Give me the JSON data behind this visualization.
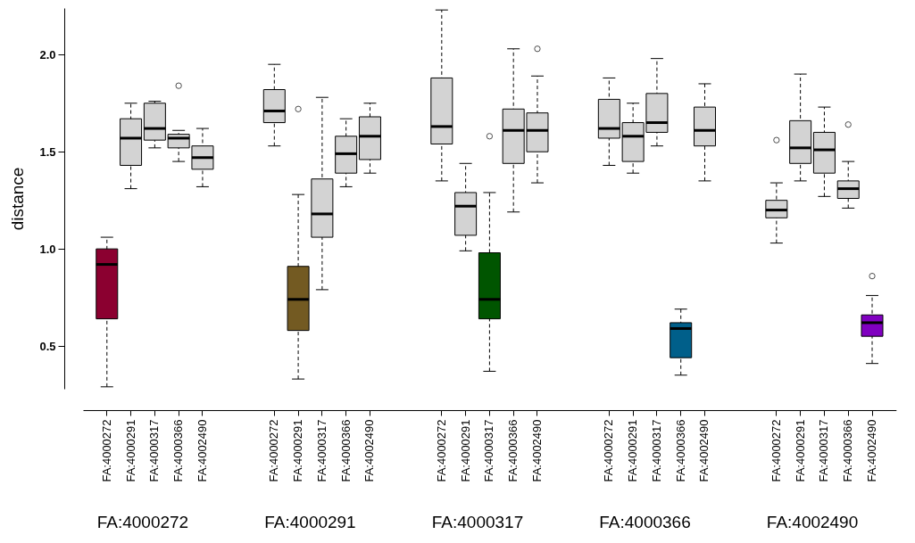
{
  "chart_data": {
    "type": "box",
    "ylabel": "distance",
    "categories": [
      "FA:4000272",
      "FA:4000291",
      "FA:4000317",
      "FA:4000366",
      "FA:4002490",
      null,
      null,
      "FA:4000272",
      "FA:4000291",
      "FA:4000317",
      "FA:4000366",
      "FA:4002490",
      null,
      null,
      "FA:4000272",
      "FA:4000291",
      "FA:4000317",
      "FA:4000366",
      "FA:4002490",
      null,
      null,
      "FA:4000272",
      "FA:4000291",
      "FA:4000317",
      "FA:4000366",
      "FA:4002490",
      null,
      null,
      "FA:4000272",
      "FA:4000291",
      "FA:4000317",
      "FA:4000366",
      "FA:4002490"
    ],
    "annotations": [
      "FA:4000272",
      "FA:4000291",
      "FA:4000317",
      "FA:4000366",
      "FA:4002490"
    ],
    "colors": [
      "#8b0030",
      "#d3d3d3",
      "#d3d3d3",
      "#d3d3d3",
      "#d3d3d3",
      null,
      null,
      "#d3d3d3",
      "#735a22",
      "#d3d3d3",
      "#d3d3d3",
      "#d3d3d3",
      null,
      null,
      "#d3d3d3",
      "#d3d3d3",
      "#005500",
      "#d3d3d3",
      "#d3d3d3",
      null,
      null,
      "#d3d3d3",
      "#d3d3d3",
      "#d3d3d3",
      "#005f8a",
      "#d3d3d3",
      null,
      null,
      "#d3d3d3",
      "#d3d3d3",
      "#d3d3d3",
      "#d3d3d3",
      "#8000c0"
    ],
    "ylim": [
      0.28,
      2.24
    ],
    "yticks": [
      {
        "value": 0.5,
        "label": "0.5"
      },
      {
        "value": 1,
        "label": "1.0"
      },
      {
        "value": 1.5,
        "label": "1.5"
      },
      {
        "value": 2,
        "label": "2.0"
      }
    ],
    "boxes": [
      {
        "low": 0.29,
        "q1": 0.64,
        "median": 0.92,
        "q3": 1.0,
        "high": 1.06
      },
      {
        "low": 1.31,
        "q1": 1.43,
        "median": 1.57,
        "q3": 1.67,
        "high": 1.75
      },
      {
        "low": 1.52,
        "q1": 1.56,
        "median": 1.62,
        "q3": 1.75,
        "high": 1.76
      },
      {
        "low": 1.45,
        "q1": 1.52,
        "median": 1.57,
        "q3": 1.59,
        "high": 1.61,
        "outliers": [
          1.84
        ]
      },
      {
        "low": 1.32,
        "q1": 1.41,
        "median": 1.47,
        "q3": 1.53,
        "high": 1.62
      },
      null,
      null,
      {
        "low": 1.53,
        "q1": 1.65,
        "median": 1.71,
        "q3": 1.82,
        "high": 1.95
      },
      {
        "low": 0.33,
        "q1": 0.58,
        "median": 0.74,
        "q3": 0.91,
        "high": 1.28,
        "outliers": [
          1.72
        ]
      },
      {
        "low": 0.79,
        "q1": 1.06,
        "median": 1.18,
        "q3": 1.36,
        "high": 1.78
      },
      {
        "low": 1.32,
        "q1": 1.39,
        "median": 1.49,
        "q3": 1.58,
        "high": 1.67
      },
      {
        "low": 1.39,
        "q1": 1.46,
        "median": 1.58,
        "q3": 1.68,
        "high": 1.75
      },
      null,
      null,
      {
        "low": 1.35,
        "q1": 1.54,
        "median": 1.63,
        "q3": 1.88,
        "high": 2.23
      },
      {
        "low": 0.99,
        "q1": 1.07,
        "median": 1.22,
        "q3": 1.29,
        "high": 1.44
      },
      {
        "low": 0.37,
        "q1": 0.64,
        "median": 0.74,
        "q3": 0.98,
        "high": 1.29,
        "outliers": [
          1.58
        ]
      },
      {
        "low": 1.19,
        "q1": 1.44,
        "median": 1.61,
        "q3": 1.72,
        "high": 2.03
      },
      {
        "low": 1.34,
        "q1": 1.5,
        "median": 1.61,
        "q3": 1.7,
        "high": 1.89,
        "outliers": [
          2.03
        ]
      },
      null,
      null,
      {
        "low": 1.43,
        "q1": 1.57,
        "median": 1.62,
        "q3": 1.77,
        "high": 1.88
      },
      {
        "low": 1.39,
        "q1": 1.45,
        "median": 1.58,
        "q3": 1.65,
        "high": 1.75
      },
      {
        "low": 1.53,
        "q1": 1.6,
        "median": 1.65,
        "q3": 1.8,
        "high": 1.98
      },
      {
        "low": 0.35,
        "q1": 0.44,
        "median": 0.59,
        "q3": 0.62,
        "high": 0.69
      },
      {
        "low": 1.35,
        "q1": 1.53,
        "median": 1.61,
        "q3": 1.73,
        "high": 1.85
      },
      null,
      null,
      {
        "low": 1.03,
        "q1": 1.16,
        "median": 1.2,
        "q3": 1.25,
        "high": 1.34,
        "outliers": [
          1.56
        ]
      },
      {
        "low": 1.35,
        "q1": 1.44,
        "median": 1.52,
        "q3": 1.66,
        "high": 1.9
      },
      {
        "low": 1.27,
        "q1": 1.39,
        "median": 1.51,
        "q3": 1.6,
        "high": 1.73
      },
      {
        "low": 1.21,
        "q1": 1.26,
        "median": 1.31,
        "q3": 1.35,
        "high": 1.45,
        "outliers": [
          1.64
        ]
      },
      {
        "low": 0.41,
        "q1": 0.55,
        "median": 0.62,
        "q3": 0.66,
        "high": 0.76,
        "outliers": [
          0.86
        ]
      }
    ]
  }
}
